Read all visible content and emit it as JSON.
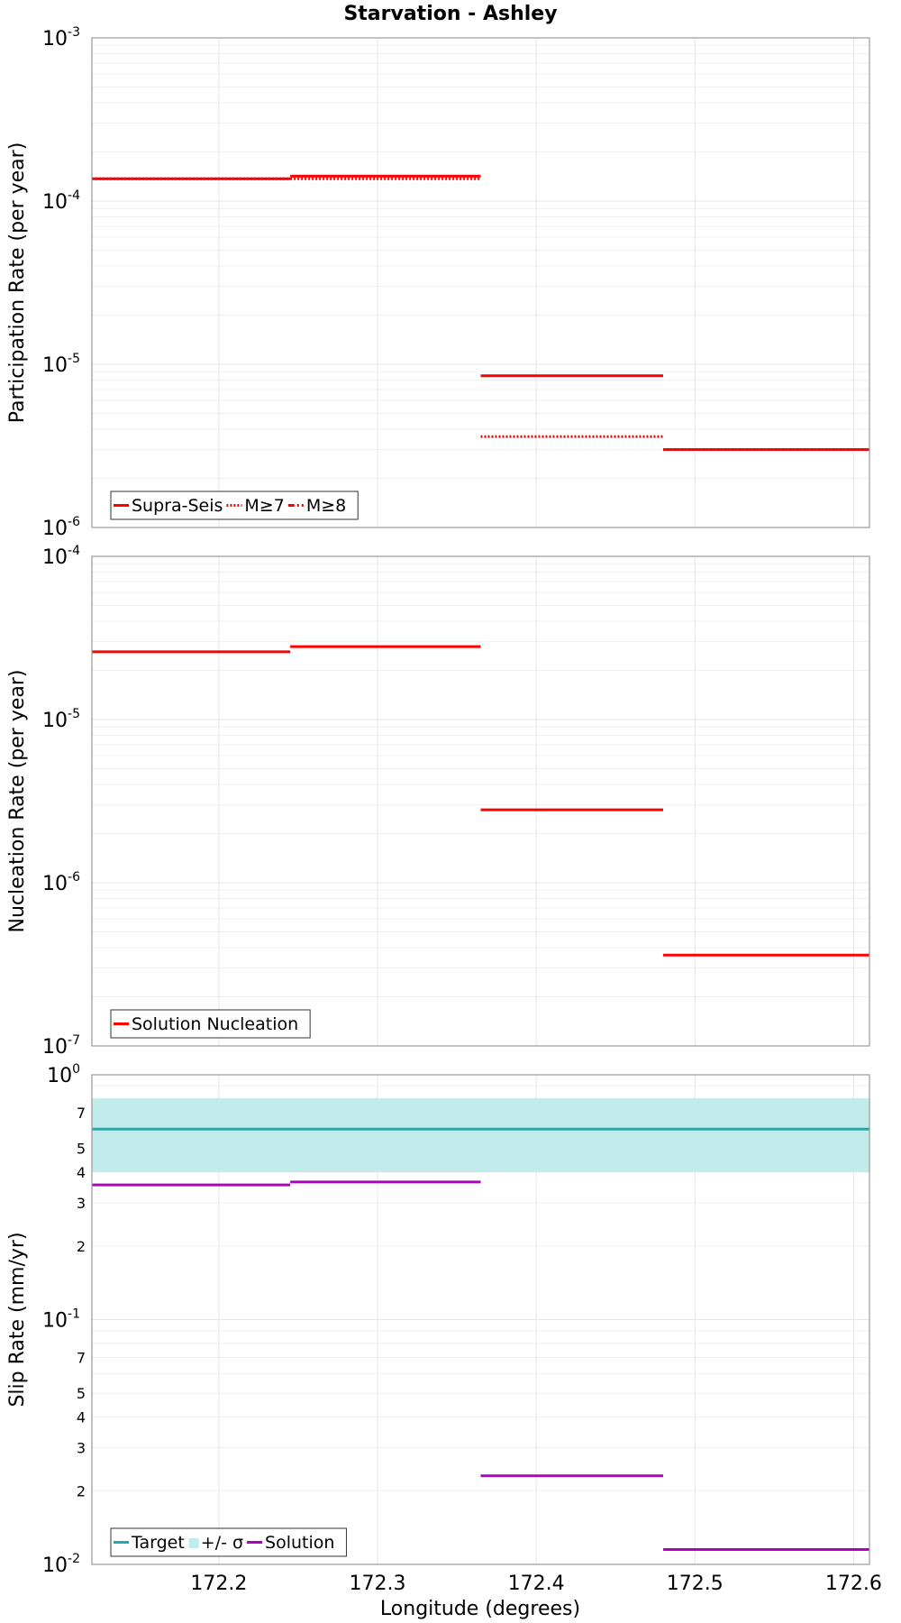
{
  "chart_data": {
    "type": "line",
    "title": "Starvation - Ashley",
    "xlabel": "Longitude (degrees)",
    "xlim": [
      172.12,
      172.61
    ],
    "x_ticks": [
      "172.2",
      "172.3",
      "172.4",
      "172.5",
      "172.6"
    ],
    "x_tick_values": [
      172.2,
      172.3,
      172.4,
      172.5,
      172.6
    ],
    "segments_x": [
      [
        172.12,
        172.245
      ],
      [
        172.245,
        172.365
      ],
      [
        172.365,
        172.48
      ],
      [
        172.48,
        172.61
      ]
    ],
    "colors": {
      "red": "#ff0000",
      "teal": "#1aadad",
      "band": "#c2ecec",
      "purple": "#b000c0"
    },
    "panels": [
      {
        "name": "participation",
        "ylabel": "Participation Rate (per year)",
        "yscale": "log",
        "ylim": [
          1e-06,
          0.001
        ],
        "major_ticks": [
          {
            "v": 1e-06,
            "b": "10",
            "e": "-6"
          },
          {
            "v": 1e-05,
            "b": "10",
            "e": "-5"
          },
          {
            "v": 0.0001,
            "b": "10",
            "e": "-4"
          },
          {
            "v": 0.001,
            "b": "10",
            "e": "-3"
          }
        ],
        "minor_labels": [],
        "series": [
          {
            "name": "Supra-Seis",
            "style": "solid",
            "color": "#ff0000",
            "values": [
              0.000137,
              0.000142,
              8.5e-06,
              3e-06
            ]
          },
          {
            "name": "M≥7",
            "style": "dotted",
            "color": "#ff0000",
            "values": [
              0.000137,
              0.000137,
              3.6e-06,
              3e-06
            ]
          },
          {
            "name": "M≥8",
            "style": "dashdot",
            "color": "#ff0000",
            "values": [
              null,
              null,
              null,
              null
            ]
          }
        ],
        "legend": {
          "position": "bottom-left",
          "items": [
            {
              "label": "Supra-Seis",
              "style": "solid",
              "color": "#ff0000"
            },
            {
              "label": "M≥7",
              "style": "dotted",
              "color": "#ff0000"
            },
            {
              "label": "M≥8",
              "style": "dashdot",
              "color": "#ff0000"
            }
          ]
        }
      },
      {
        "name": "nucleation",
        "ylabel": "Nucleation Rate (per year)",
        "yscale": "log",
        "ylim": [
          1e-07,
          0.0001
        ],
        "major_ticks": [
          {
            "v": 1e-07,
            "b": "10",
            "e": "-7"
          },
          {
            "v": 1e-06,
            "b": "10",
            "e": "-6"
          },
          {
            "v": 1e-05,
            "b": "10",
            "e": "-5"
          },
          {
            "v": 0.0001,
            "b": "10",
            "e": "-4"
          }
        ],
        "minor_labels": [],
        "series": [
          {
            "name": "Solution Nucleation",
            "style": "solid",
            "color": "#ff0000",
            "values": [
              2.6e-05,
              2.8e-05,
              2.8e-06,
              3.6e-07
            ]
          }
        ],
        "legend": {
          "position": "bottom-left",
          "items": [
            {
              "label": "Solution Nucleation",
              "style": "solid",
              "color": "#ff0000"
            }
          ]
        }
      },
      {
        "name": "slip",
        "ylabel": "Slip Rate (mm/yr)",
        "yscale": "log",
        "ylim": [
          0.01,
          1
        ],
        "major_ticks": [
          {
            "v": 0.01,
            "b": "10",
            "e": "-2"
          },
          {
            "v": 0.1,
            "b": "10",
            "e": "-1"
          },
          {
            "v": 1,
            "b": "10",
            "e": "0"
          }
        ],
        "minor_labels": [
          {
            "v": 0.02,
            "t": "2"
          },
          {
            "v": 0.03,
            "t": "3"
          },
          {
            "v": 0.04,
            "t": "4"
          },
          {
            "v": 0.05,
            "t": "5"
          },
          {
            "v": 0.07,
            "t": "7"
          },
          {
            "v": 0.2,
            "t": "2"
          },
          {
            "v": 0.3,
            "t": "3"
          },
          {
            "v": 0.4,
            "t": "4"
          },
          {
            "v": 0.5,
            "t": "5"
          },
          {
            "v": 0.7,
            "t": "7"
          }
        ],
        "band": {
          "name": "+/- σ",
          "low": 0.4,
          "high": 0.8,
          "color": "#c2ecec"
        },
        "series": [
          {
            "name": "Target",
            "style": "solid",
            "color": "#1aadad",
            "full_width": true,
            "values": [
              0.6
            ]
          },
          {
            "name": "Solution",
            "style": "solid",
            "color": "#b000c0",
            "values": [
              0.355,
              0.365,
              0.023,
              0.0115
            ]
          }
        ],
        "legend": {
          "position": "bottom-left",
          "items": [
            {
              "label": "Target",
              "style": "solid",
              "color": "#1aadad"
            },
            {
              "label": "+/- σ",
              "style": "band",
              "color": "#c2ecec"
            },
            {
              "label": "Solution",
              "style": "solid",
              "color": "#b000c0"
            }
          ]
        }
      }
    ]
  }
}
